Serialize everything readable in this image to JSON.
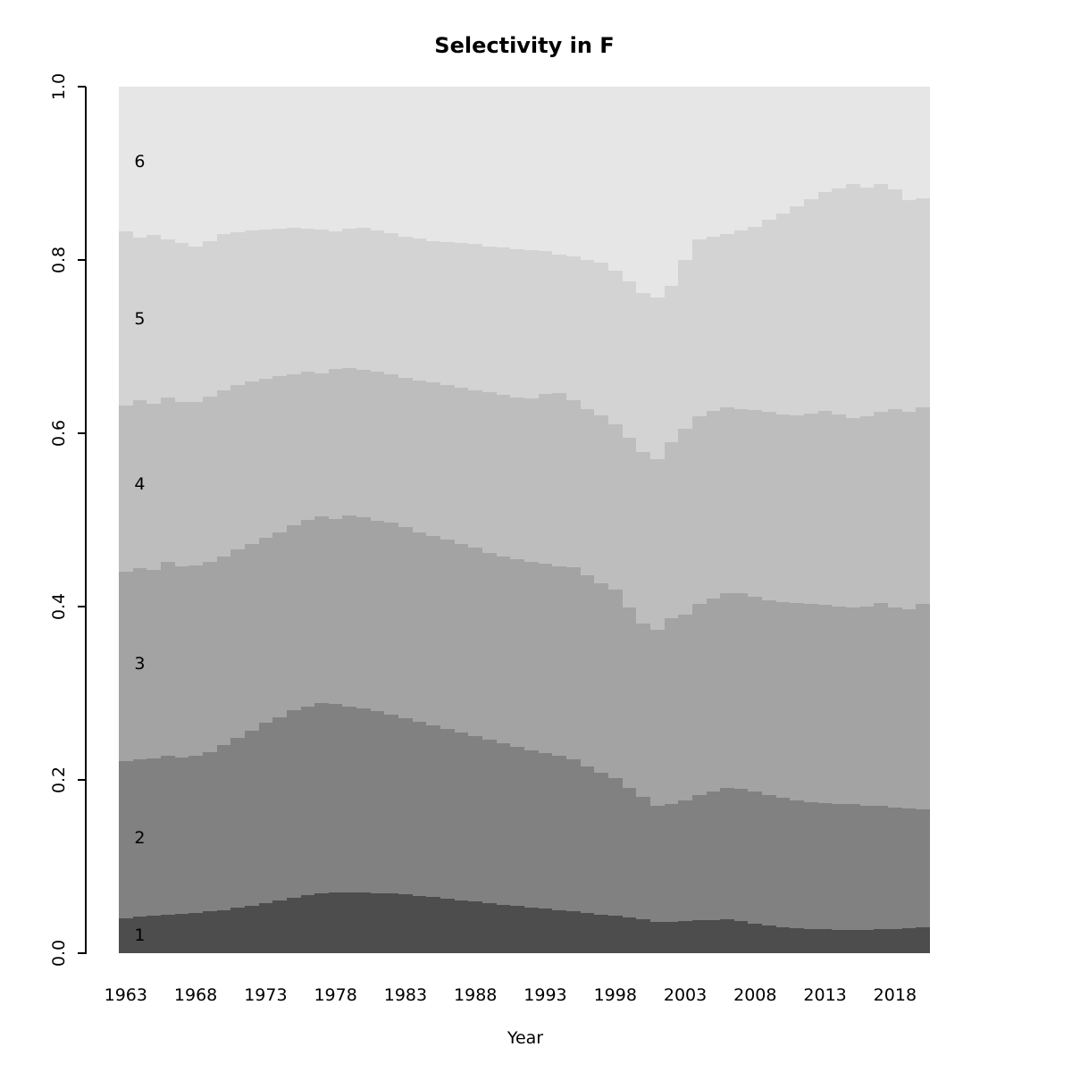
{
  "title": "Selectivity in F",
  "axes": {
    "x_label": "Year",
    "x_ticks": [
      "1963",
      "1968",
      "1973",
      "1978",
      "1983",
      "1988",
      "1993",
      "1998",
      "2003",
      "2008",
      "2013",
      "2018"
    ],
    "y_ticks": [
      "0.0",
      "0.2",
      "0.4",
      "0.6",
      "0.8",
      "1.0"
    ]
  },
  "band_labels": [
    "1",
    "2",
    "3",
    "4",
    "5",
    "6"
  ],
  "colors": {
    "band1": "#4d4d4d",
    "band2": "#818181",
    "band3": "#a3a3a3",
    "band4": "#bdbdbd",
    "band5": "#d3d3d3",
    "band6": "#e6e6e6",
    "axis": "#000000",
    "background": "#ffffff"
  },
  "chart_data": {
    "type": "bar",
    "subtype": "stacked-proportion",
    "title": "Selectivity in F",
    "xlabel": "Year",
    "ylabel": "",
    "ylim": [
      0,
      1
    ],
    "grid": false,
    "legend_position": "labels-inside-left",
    "x": [
      1963,
      1964,
      1965,
      1966,
      1967,
      1968,
      1969,
      1970,
      1971,
      1972,
      1973,
      1974,
      1975,
      1976,
      1977,
      1978,
      1979,
      1980,
      1981,
      1982,
      1983,
      1984,
      1985,
      1986,
      1987,
      1988,
      1989,
      1990,
      1991,
      1992,
      1993,
      1994,
      1995,
      1996,
      1997,
      1998,
      1999,
      2000,
      2001,
      2002,
      2003,
      2004,
      2005,
      2006,
      2007,
      2008,
      2009,
      2010,
      2011,
      2012,
      2013,
      2014,
      2015,
      2016,
      2017,
      2018,
      2019,
      2020
    ],
    "series": [
      {
        "name": "1",
        "color": "#4d4d4d",
        "values": [
          0.04,
          0.042,
          0.043,
          0.044,
          0.045,
          0.046,
          0.048,
          0.05,
          0.053,
          0.055,
          0.058,
          0.061,
          0.064,
          0.067,
          0.069,
          0.07,
          0.07,
          0.07,
          0.069,
          0.069,
          0.068,
          0.066,
          0.065,
          0.063,
          0.061,
          0.06,
          0.058,
          0.056,
          0.055,
          0.053,
          0.052,
          0.05,
          0.048,
          0.046,
          0.044,
          0.043,
          0.041,
          0.039,
          0.036,
          0.036,
          0.037,
          0.038,
          0.038,
          0.039,
          0.037,
          0.034,
          0.032,
          0.03,
          0.029,
          0.028,
          0.028,
          0.027,
          0.027,
          0.027,
          0.028,
          0.028,
          0.029,
          0.03
        ]
      },
      {
        "name": "2",
        "color": "#818181",
        "values": [
          0.182,
          0.182,
          0.182,
          0.184,
          0.181,
          0.182,
          0.184,
          0.19,
          0.195,
          0.202,
          0.208,
          0.211,
          0.216,
          0.218,
          0.22,
          0.218,
          0.215,
          0.213,
          0.21,
          0.206,
          0.203,
          0.201,
          0.198,
          0.196,
          0.194,
          0.191,
          0.188,
          0.186,
          0.183,
          0.181,
          0.179,
          0.178,
          0.176,
          0.169,
          0.164,
          0.159,
          0.15,
          0.141,
          0.134,
          0.136,
          0.139,
          0.145,
          0.149,
          0.152,
          0.153,
          0.153,
          0.151,
          0.149,
          0.147,
          0.146,
          0.145,
          0.145,
          0.145,
          0.143,
          0.142,
          0.14,
          0.138,
          0.136
        ]
      },
      {
        "name": "3",
        "color": "#a3a3a3",
        "values": [
          0.218,
          0.22,
          0.217,
          0.224,
          0.22,
          0.219,
          0.22,
          0.218,
          0.218,
          0.215,
          0.213,
          0.214,
          0.214,
          0.215,
          0.215,
          0.213,
          0.22,
          0.22,
          0.22,
          0.222,
          0.221,
          0.219,
          0.218,
          0.218,
          0.217,
          0.217,
          0.216,
          0.216,
          0.217,
          0.218,
          0.219,
          0.218,
          0.221,
          0.221,
          0.219,
          0.218,
          0.208,
          0.2,
          0.203,
          0.215,
          0.215,
          0.22,
          0.222,
          0.224,
          0.226,
          0.224,
          0.224,
          0.226,
          0.228,
          0.229,
          0.229,
          0.228,
          0.227,
          0.23,
          0.234,
          0.231,
          0.23,
          0.237
        ]
      },
      {
        "name": "4",
        "color": "#bdbdbd",
        "values": [
          0.192,
          0.194,
          0.192,
          0.189,
          0.19,
          0.189,
          0.19,
          0.192,
          0.19,
          0.188,
          0.184,
          0.18,
          0.174,
          0.171,
          0.165,
          0.173,
          0.17,
          0.17,
          0.172,
          0.171,
          0.172,
          0.175,
          0.178,
          0.179,
          0.181,
          0.182,
          0.185,
          0.186,
          0.186,
          0.188,
          0.195,
          0.2,
          0.193,
          0.192,
          0.194,
          0.19,
          0.196,
          0.198,
          0.197,
          0.203,
          0.214,
          0.217,
          0.217,
          0.215,
          0.212,
          0.216,
          0.218,
          0.217,
          0.217,
          0.22,
          0.224,
          0.222,
          0.219,
          0.22,
          0.221,
          0.229,
          0.228,
          0.227
        ]
      },
      {
        "name": "5",
        "color": "#d3d3d3",
        "values": [
          0.201,
          0.188,
          0.195,
          0.183,
          0.184,
          0.18,
          0.18,
          0.18,
          0.176,
          0.174,
          0.172,
          0.17,
          0.169,
          0.165,
          0.166,
          0.159,
          0.161,
          0.164,
          0.163,
          0.163,
          0.163,
          0.164,
          0.163,
          0.165,
          0.167,
          0.169,
          0.169,
          0.17,
          0.171,
          0.171,
          0.165,
          0.16,
          0.166,
          0.172,
          0.176,
          0.178,
          0.18,
          0.184,
          0.187,
          0.18,
          0.195,
          0.204,
          0.201,
          0.2,
          0.206,
          0.211,
          0.221,
          0.232,
          0.241,
          0.247,
          0.252,
          0.261,
          0.27,
          0.264,
          0.263,
          0.253,
          0.244,
          0.241
        ]
      },
      {
        "name": "6",
        "color": "#e6e6e6",
        "values": [
          0.167,
          0.174,
          0.171,
          0.176,
          0.18,
          0.184,
          0.178,
          0.17,
          0.168,
          0.166,
          0.165,
          0.164,
          0.163,
          0.164,
          0.165,
          0.167,
          0.164,
          0.163,
          0.166,
          0.169,
          0.173,
          0.175,
          0.178,
          0.179,
          0.18,
          0.181,
          0.184,
          0.186,
          0.188,
          0.189,
          0.19,
          0.194,
          0.196,
          0.2,
          0.203,
          0.212,
          0.225,
          0.238,
          0.243,
          0.23,
          0.2,
          0.176,
          0.173,
          0.17,
          0.166,
          0.162,
          0.154,
          0.146,
          0.138,
          0.13,
          0.122,
          0.117,
          0.112,
          0.116,
          0.112,
          0.119,
          0.131,
          0.129
        ]
      }
    ]
  }
}
